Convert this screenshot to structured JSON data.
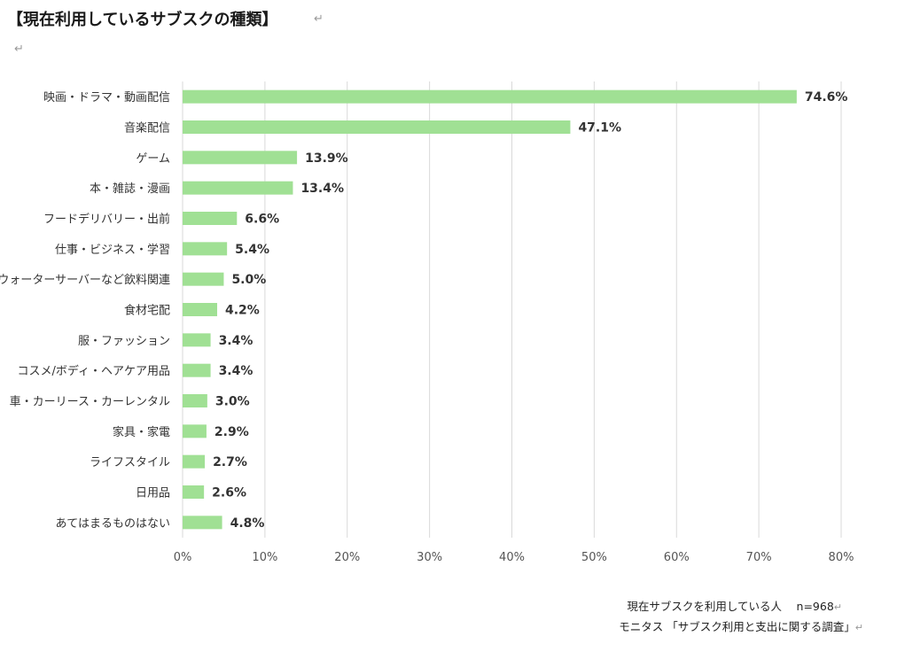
{
  "title": "【現在利用しているサブスクの種類】",
  "return_mark": "↵",
  "footnotes": {
    "respondents": "現在サブスクを利用している人　 n=968",
    "source": "モニタス 「サブスク利用と支出に関する調査」"
  },
  "colors": {
    "bar": "#a0e094",
    "grid": "#d9d9d9"
  },
  "chart_data": {
    "type": "bar",
    "orientation": "horizontal",
    "title": "【現在利用しているサブスクの種類】",
    "xlabel": "",
    "ylabel": "",
    "xlim": [
      0,
      80
    ],
    "x_ticks": [
      0,
      10,
      20,
      30,
      40,
      50,
      60,
      70,
      80
    ],
    "x_tick_labels": [
      "0%",
      "10%",
      "20%",
      "30%",
      "40%",
      "50%",
      "60%",
      "70%",
      "80%"
    ],
    "grid": true,
    "categories": [
      "映画・ドラマ・動画配信",
      "音楽配信",
      "ゲーム",
      "本・雑誌・漫画",
      "フードデリバリー・出前",
      "仕事・ビジネス・学習",
      "ウォーターサーバーなど飲料関連",
      "食材宅配",
      "服・ファッション",
      "コスメ/ボディ・ヘアケア用品",
      "車・カーリース・カーレンタル",
      "家具・家電",
      "ライフスタイル",
      "日用品",
      "あてはまるものはない"
    ],
    "values": [
      74.6,
      47.1,
      13.9,
      13.4,
      6.6,
      5.4,
      5.0,
      4.2,
      3.4,
      3.4,
      3.0,
      2.9,
      2.7,
      2.6,
      4.8
    ],
    "value_labels": [
      "74.6%",
      "47.1%",
      "13.9%",
      "13.4%",
      "6.6%",
      "5.4%",
      "5.0%",
      "4.2%",
      "3.4%",
      "3.4%",
      "3.0%",
      "2.9%",
      "2.7%",
      "2.6%",
      "4.8%"
    ]
  }
}
